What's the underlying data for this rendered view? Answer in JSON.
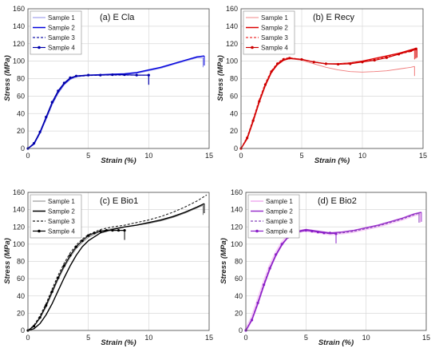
{
  "chart_data": [
    {
      "type": "line",
      "panel_label": "(a) E Cla",
      "xlabel": "Strain (%)",
      "ylabel": "Stress (MPa)",
      "xlim": [
        0,
        15
      ],
      "ylim": [
        0,
        160
      ],
      "xticks": [
        0,
        5,
        10,
        15
      ],
      "yticks": [
        0,
        20,
        40,
        60,
        80,
        100,
        120,
        140,
        160
      ],
      "grid": true,
      "legend_position": "top-left",
      "series": [
        {
          "name": "Sample 1",
          "color": "#7f7fe6",
          "style": "thin",
          "break_at_end": true,
          "x": [
            0,
            0.5,
            1,
            1.5,
            2,
            2.5,
            3,
            3.5,
            4,
            5,
            6,
            7,
            8,
            9,
            10,
            11,
            12,
            13,
            14,
            14.5
          ],
          "y": [
            0,
            5,
            17,
            33,
            50,
            63,
            73,
            79,
            82,
            83.5,
            84,
            84.5,
            85,
            86,
            89,
            92,
            96,
            100,
            104,
            104
          ]
        },
        {
          "name": "Sample 2",
          "color": "#0000dd",
          "style": "solid",
          "break_at_end": true,
          "x": [
            0,
            0.5,
            1,
            1.5,
            2,
            2.5,
            3,
            3.5,
            4,
            5,
            6,
            7,
            8,
            9,
            10,
            11,
            12,
            13,
            14,
            14.6
          ],
          "y": [
            0,
            5,
            18,
            35,
            52,
            65,
            74,
            80,
            83,
            84,
            84.5,
            85,
            85.5,
            87,
            90,
            93,
            97,
            101,
            105,
            106
          ]
        },
        {
          "name": "Sample 3",
          "color": "#1a1aaa",
          "style": "dashed",
          "break_at_end": true,
          "x": [
            0,
            0.5,
            1,
            1.5,
            2,
            2.5,
            3,
            3.5,
            4,
            5,
            6,
            7,
            8,
            9,
            10
          ],
          "y": [
            0,
            5,
            18,
            34,
            51,
            64,
            74,
            80,
            82.5,
            83.5,
            84,
            84,
            84,
            84,
            84
          ]
        },
        {
          "name": "Sample 4",
          "color": "#0000aa",
          "style": "marker",
          "break_at_end": true,
          "x": [
            0,
            0.5,
            1,
            1.5,
            2,
            2.5,
            3,
            3.5,
            4,
            5,
            6,
            7,
            8,
            9,
            10
          ],
          "y": [
            0,
            6,
            19,
            36,
            53,
            66,
            75,
            81,
            83,
            84,
            84,
            84.5,
            84.5,
            84,
            84
          ]
        }
      ]
    },
    {
      "type": "line",
      "panel_label": "(b) E Recy",
      "xlabel": "Strain (%)",
      "ylabel": "Stress (MPa)",
      "xlim": [
        0,
        15
      ],
      "ylim": [
        0,
        160
      ],
      "xticks": [
        0,
        5,
        10,
        15
      ],
      "yticks": [
        0,
        20,
        40,
        60,
        80,
        100,
        120,
        140,
        160
      ],
      "grid": true,
      "legend_position": "top-left",
      "series": [
        {
          "name": "Sample 1",
          "color": "#f07a7a",
          "style": "thin",
          "break_at_end": true,
          "x": [
            0,
            0.5,
            1,
            1.5,
            2,
            2.5,
            3,
            3.5,
            4,
            5,
            6,
            7,
            8,
            9,
            10,
            11,
            12,
            13,
            14,
            14.3
          ],
          "y": [
            0,
            12,
            33,
            55,
            74,
            88,
            97,
            102,
            103,
            101,
            97,
            93,
            90,
            88,
            87.5,
            88,
            89,
            91,
            93,
            94
          ]
        },
        {
          "name": "Sample 2",
          "color": "#dd0000",
          "style": "solid",
          "break_at_end": true,
          "x": [
            0,
            0.5,
            1,
            1.5,
            2,
            2.5,
            3,
            3.5,
            4,
            5,
            6,
            7,
            8,
            9,
            10,
            11,
            12,
            13,
            14,
            14.5
          ],
          "y": [
            0,
            11,
            31,
            53,
            72,
            87,
            96,
            101,
            103,
            102,
            99,
            97,
            97,
            98,
            100,
            103,
            106,
            109,
            113,
            115
          ]
        },
        {
          "name": "Sample 3",
          "color": "#ee3333",
          "style": "dashed",
          "break_at_end": true,
          "x": [
            0,
            0.5,
            1,
            1.5,
            2,
            2.5,
            3,
            3.5,
            4,
            5,
            6,
            7,
            8,
            9,
            10,
            11,
            12,
            13,
            14,
            14.3
          ],
          "y": [
            0,
            13,
            34,
            56,
            75,
            89,
            98,
            103,
            104,
            102,
            99,
            97,
            97,
            98,
            99,
            102,
            105,
            108,
            111,
            113
          ]
        },
        {
          "name": "Sample 4",
          "color": "#cc0000",
          "style": "marker",
          "break_at_end": true,
          "x": [
            0,
            0.5,
            1,
            1.5,
            2,
            2.5,
            3,
            3.5,
            4,
            5,
            6,
            7,
            8,
            9,
            10,
            11,
            12,
            13,
            14,
            14.4
          ],
          "y": [
            0,
            12,
            32,
            54,
            73,
            88,
            97,
            102,
            103.5,
            102,
            99,
            97,
            96.5,
            97,
            99,
            101,
            104,
            108,
            112,
            114
          ]
        }
      ]
    },
    {
      "type": "line",
      "panel_label": "(c) E Bio1",
      "xlabel": "Strain (%)",
      "ylabel": "Stress (MPa)",
      "xlim": [
        0,
        15
      ],
      "ylim": [
        0,
        160
      ],
      "xticks": [
        0,
        5,
        10,
        15
      ],
      "yticks": [
        0,
        20,
        40,
        60,
        80,
        100,
        120,
        140,
        160
      ],
      "grid": true,
      "legend_position": "top-left",
      "series": [
        {
          "name": "Sample 1",
          "color": "#777777",
          "style": "thin",
          "break_at_end": true,
          "x": [
            0,
            0.5,
            1,
            1.5,
            2,
            2.5,
            3,
            3.5,
            4,
            4.5,
            5,
            6,
            7,
            8,
            9,
            10,
            11,
            12,
            13,
            14,
            14.5
          ],
          "y": [
            0,
            5,
            14,
            27,
            43,
            59,
            73,
            85,
            95,
            102,
            108,
            115,
            118,
            120,
            122,
            124,
            127,
            131,
            136,
            142,
            145
          ]
        },
        {
          "name": "Sample 2",
          "color": "#000000",
          "style": "solid",
          "break_at_end": true,
          "x": [
            0,
            0.5,
            1,
            1.5,
            2,
            2.5,
            3,
            3.5,
            4,
            4.5,
            5,
            6,
            7,
            8,
            9,
            10,
            11,
            12,
            13,
            14,
            14.6
          ],
          "y": [
            0,
            2,
            8,
            18,
            31,
            46,
            61,
            75,
            87,
            97,
            104,
            113,
            117,
            120,
            122,
            125,
            128,
            132,
            137,
            143,
            147
          ]
        },
        {
          "name": "Sample 3",
          "color": "#222222",
          "style": "dashed",
          "break_at_end": false,
          "x": [
            0,
            0.5,
            1,
            1.5,
            2,
            2.5,
            3,
            3.5,
            4,
            4.5,
            5,
            6,
            7,
            8,
            9,
            10,
            11,
            12,
            13,
            14,
            14.8
          ],
          "y": [
            0,
            6,
            17,
            31,
            48,
            64,
            78,
            90,
            99,
            106,
            111,
            117,
            120,
            122,
            125,
            128,
            132,
            137,
            143,
            150,
            157
          ]
        },
        {
          "name": "Sample 4",
          "color": "#000000",
          "style": "marker",
          "break_at_end": true,
          "x": [
            0,
            0.5,
            1,
            1.5,
            2,
            2.5,
            3,
            3.5,
            4,
            4.5,
            5,
            5.5,
            6,
            6.5,
            7,
            7.5,
            8
          ],
          "y": [
            0,
            5,
            15,
            29,
            45,
            61,
            75,
            87,
            97,
            104,
            110,
            113,
            115,
            116,
            116,
            116,
            116
          ]
        }
      ]
    },
    {
      "type": "line",
      "panel_label": "(d) E Bio2",
      "xlabel": "Strain (%)",
      "ylabel": "Stress (MPa)",
      "xlim": [
        0,
        15
      ],
      "ylim": [
        0,
        160
      ],
      "xticks": [
        0,
        5,
        10,
        15
      ],
      "yticks": [
        0,
        20,
        40,
        60,
        80,
        100,
        120,
        140,
        160
      ],
      "grid": true,
      "legend_position": "top-left",
      "series": [
        {
          "name": "Sample 1",
          "color": "#f0a8f0",
          "style": "band",
          "break_at_end": true,
          "x": [
            0,
            0.5,
            1,
            1.5,
            2,
            2.5,
            3,
            3.5,
            4,
            5,
            6,
            7,
            8,
            9,
            10,
            11,
            12,
            13,
            14,
            14.5
          ],
          "y": [
            0,
            14,
            34,
            55,
            74,
            89,
            101,
            109,
            114,
            116,
            114,
            112,
            113,
            115,
            118,
            121,
            125,
            129,
            134,
            136
          ]
        },
        {
          "name": "Sample 2",
          "color": "#9933cc",
          "style": "solid",
          "break_at_end": true,
          "x": [
            0,
            0.5,
            1,
            1.5,
            2,
            2.5,
            3,
            3.5,
            4,
            5,
            6,
            7,
            8,
            9,
            10,
            11,
            12,
            13,
            14,
            14.6
          ],
          "y": [
            0,
            12,
            31,
            52,
            71,
            87,
            99,
            108,
            114,
            117,
            115,
            113,
            114,
            116,
            119,
            122,
            126,
            130,
            135,
            137
          ]
        },
        {
          "name": "Sample 3",
          "color": "#8844bb",
          "style": "dashed",
          "break_at_end": true,
          "x": [
            0,
            0.5,
            1,
            1.5,
            2,
            2.5,
            3,
            3.5,
            4,
            5,
            6,
            7,
            8,
            9,
            10,
            11,
            12,
            13,
            14,
            14.4
          ],
          "y": [
            0,
            13,
            33,
            54,
            73,
            88,
            100,
            108,
            113,
            116,
            114,
            112,
            113,
            115,
            118,
            121,
            125,
            129,
            134,
            136
          ]
        },
        {
          "name": "Sample 4",
          "color": "#8a1fc8",
          "style": "marker",
          "break_at_end": true,
          "x": [
            0,
            0.5,
            1,
            1.5,
            2,
            2.5,
            3,
            3.5,
            4,
            5,
            5.5,
            6,
            6.5,
            7,
            7.5
          ],
          "y": [
            0,
            12,
            32,
            53,
            72,
            88,
            100,
            108,
            113,
            116,
            115,
            114,
            113,
            113,
            112
          ]
        }
      ]
    }
  ]
}
